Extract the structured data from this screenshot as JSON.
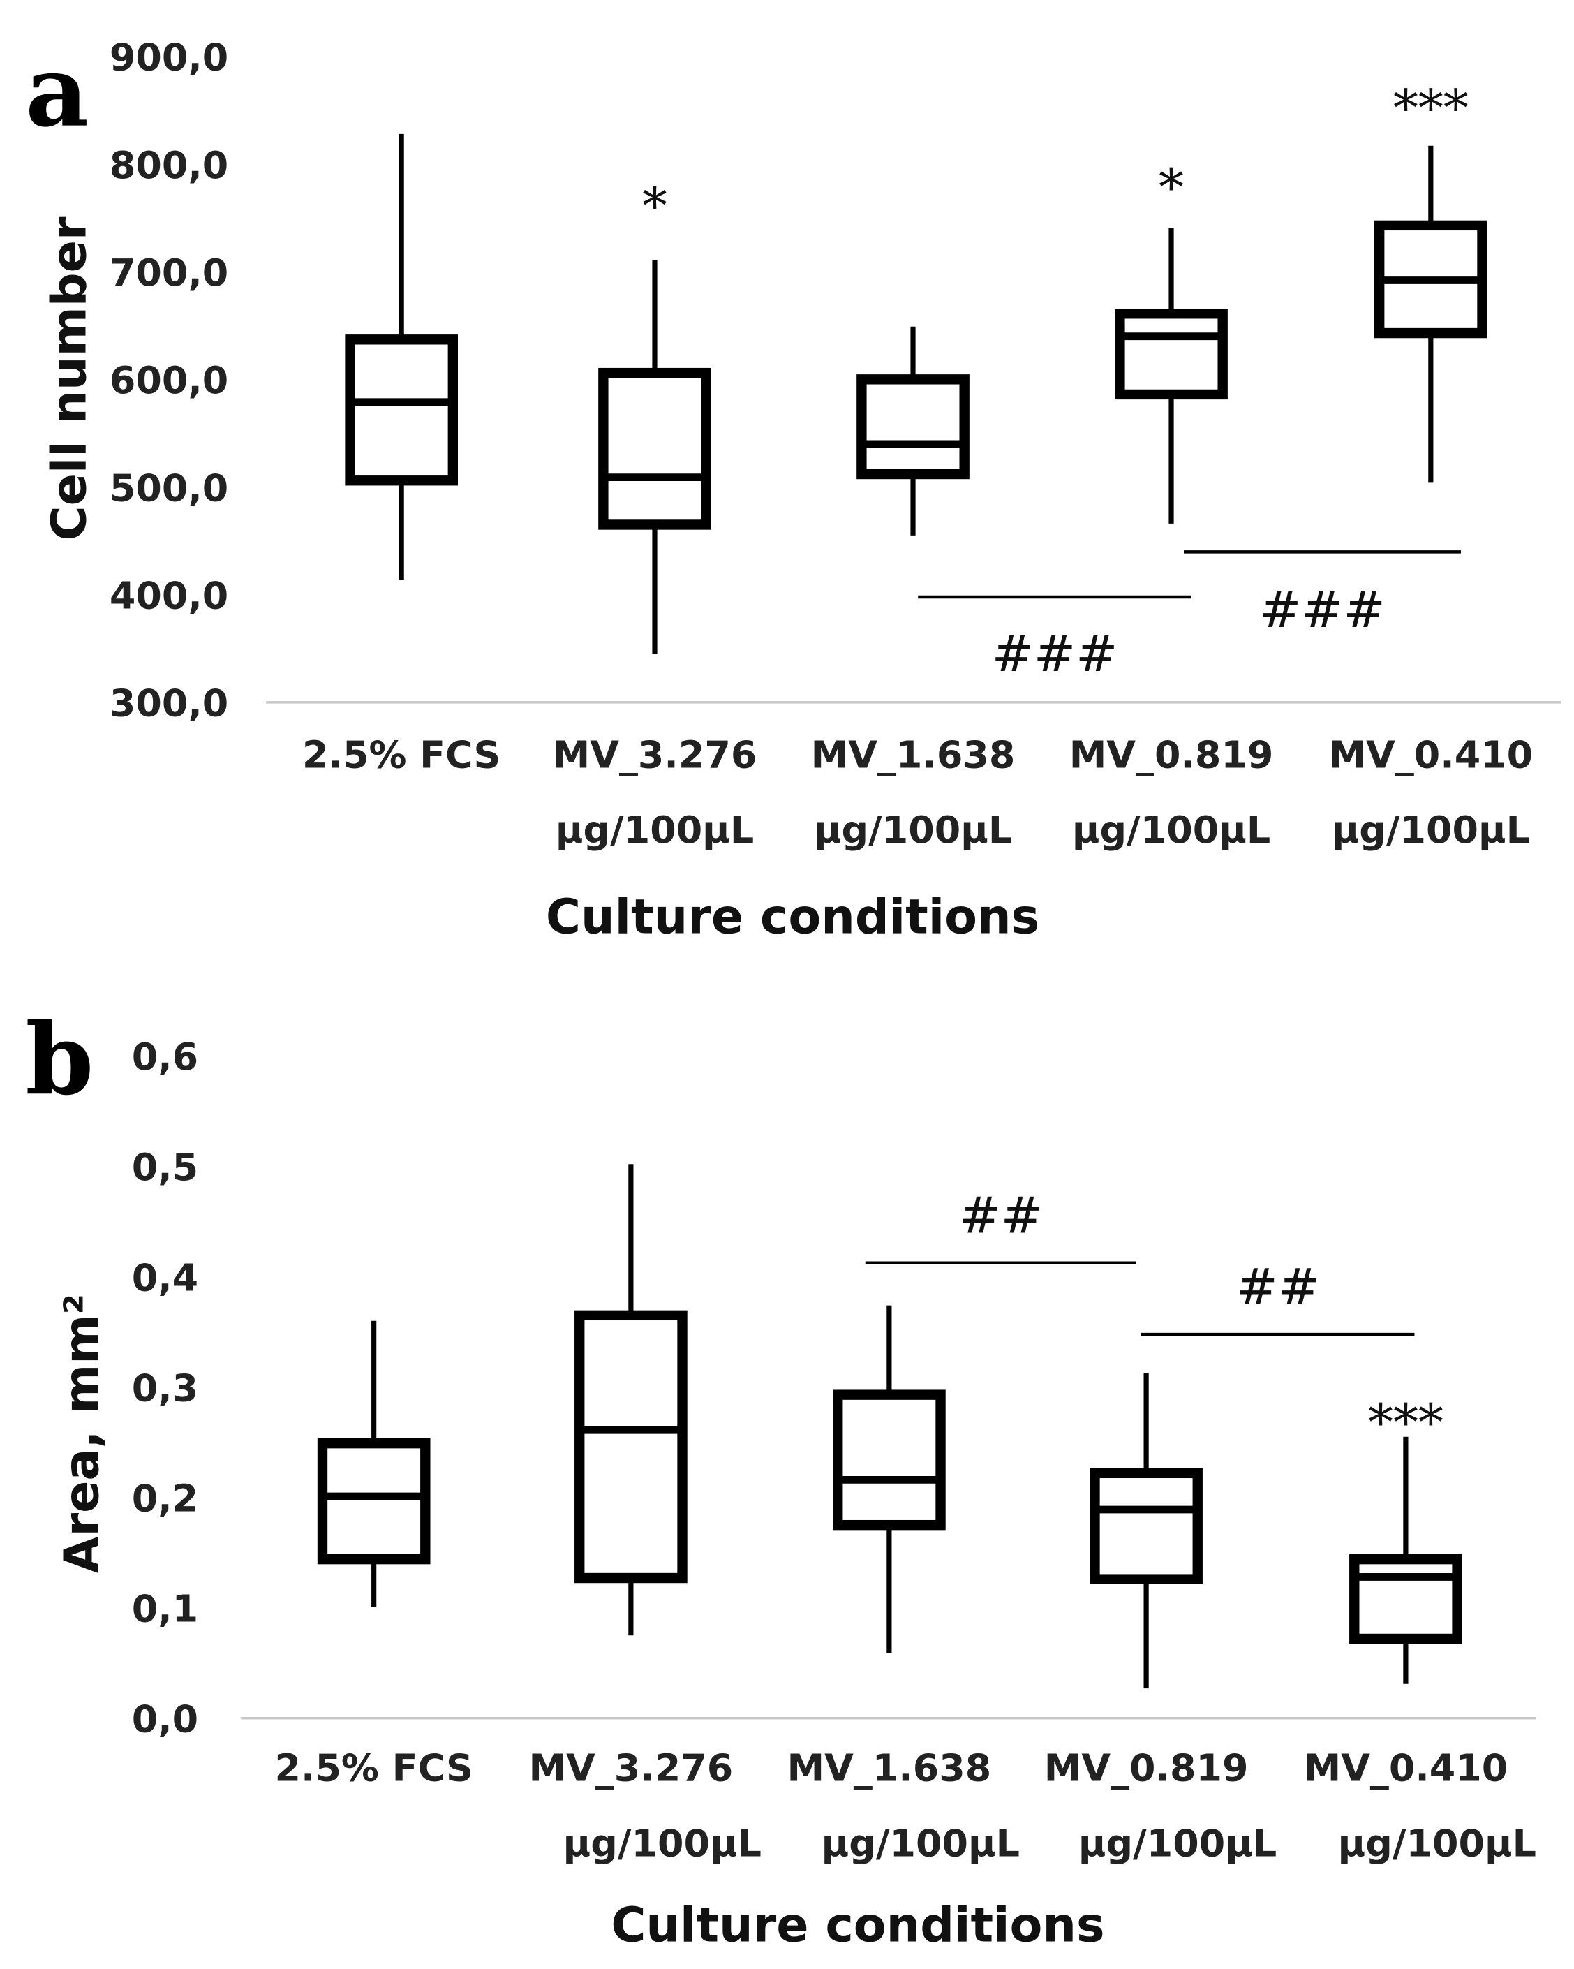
{
  "chart_data": [
    {
      "panel": "a",
      "type": "box",
      "categories": [
        "2.5% FCS",
        "MV_3.276 µg/100µL",
        "MV_1.638 µg/100µL",
        "MV_0.819 µg/100µL",
        "MV_0.410 µg/100µL"
      ],
      "category_lines": [
        [
          "2.5% FCS",
          ""
        ],
        [
          "MV_3.276",
          "µg/100µL"
        ],
        [
          "MV_1.638",
          "µg/100µL"
        ],
        [
          "MV_0.819",
          "µg/100µL"
        ],
        [
          "MV_0.410",
          "µg/100µL"
        ]
      ],
      "boxes": [
        {
          "min": 414,
          "q1": 506,
          "median": 579,
          "q3": 637,
          "max": 828
        },
        {
          "min": 345,
          "q1": 465,
          "median": 509,
          "q3": 606,
          "max": 711
        },
        {
          "min": 455,
          "q1": 512,
          "median": 540,
          "q3": 600,
          "max": 649
        },
        {
          "min": 466,
          "q1": 586,
          "median": 640,
          "q3": 661,
          "max": 741
        },
        {
          "min": 504,
          "q1": 643,
          "median": 692,
          "q3": 743,
          "max": 817
        }
      ],
      "xlabel": "Culture conditions",
      "ylabel": "Cell number",
      "ylim": [
        300,
        900
      ],
      "yticks": [
        "300,0",
        "400,0",
        "500,0",
        "600,0",
        "700,0",
        "800,0",
        "900,0"
      ],
      "annotations": {
        "stars": [
          "",
          "*",
          "",
          "*",
          "***"
        ],
        "brackets": [
          {
            "label": "###",
            "from": 2,
            "to": 3
          },
          {
            "label": "###",
            "from": 3,
            "to": 4
          }
        ]
      }
    },
    {
      "panel": "b",
      "type": "box",
      "categories": [
        "2.5% FCS",
        "MV_3.276 µg/100µL",
        "MV_1.638 µg/100µL",
        "MV_0.819 µg/100µL",
        "MV_0.410 µg/100µL"
      ],
      "category_lines": [
        [
          "2.5% FCS",
          ""
        ],
        [
          "MV_3.276",
          "µg/100µL"
        ],
        [
          "MV_1.638",
          "µg/100µL"
        ],
        [
          "MV_0.819",
          "µg/100µL"
        ],
        [
          "MV_0.410",
          "µg/100µL"
        ]
      ],
      "boxes": [
        {
          "min": 0.101,
          "q1": 0.144,
          "median": 0.201,
          "q3": 0.249,
          "max": 0.36
        },
        {
          "min": 0.075,
          "q1": 0.127,
          "median": 0.261,
          "q3": 0.365,
          "max": 0.502
        },
        {
          "min": 0.059,
          "q1": 0.175,
          "median": 0.216,
          "q3": 0.293,
          "max": 0.374
        },
        {
          "min": 0.027,
          "q1": 0.126,
          "median": 0.189,
          "q3": 0.222,
          "max": 0.313
        },
        {
          "min": 0.031,
          "q1": 0.072,
          "median": 0.128,
          "q3": 0.144,
          "max": 0.255
        }
      ],
      "xlabel": "Culture conditions",
      "ylabel": "Area, mm²",
      "ylim": [
        0,
        0.6
      ],
      "yticks": [
        "0,0",
        "0,1",
        "0,2",
        "0,3",
        "0,4",
        "0,5",
        "0,6"
      ],
      "annotations": {
        "stars": [
          "",
          "",
          "",
          "",
          "***"
        ],
        "brackets": [
          {
            "label": "##",
            "from": 2,
            "to": 3
          },
          {
            "label": "##",
            "from": 3,
            "to": 4
          }
        ]
      }
    }
  ]
}
